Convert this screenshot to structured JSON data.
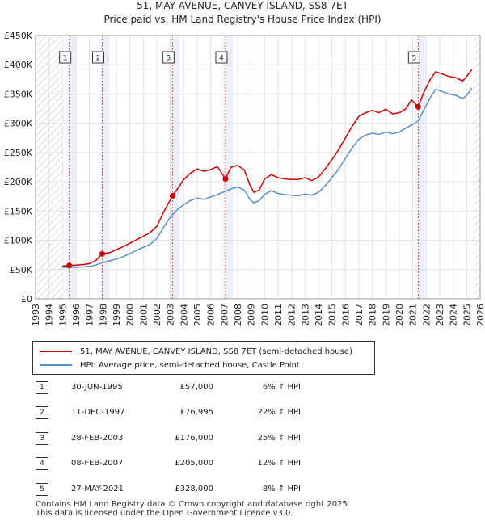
{
  "chart_data": {
    "type": "line",
    "title": "51, MAY AVENUE, CANVEY ISLAND, SS8 7ET",
    "subtitle": "Price paid vs. HM Land Registry's House Price Index (HPI)",
    "xlim": [
      1993,
      2026
    ],
    "ylim": [
      0,
      450000
    ],
    "x_ticks": [
      "1993",
      "1994",
      "1995",
      "1996",
      "1997",
      "1998",
      "1999",
      "2000",
      "2001",
      "2002",
      "2003",
      "2004",
      "2005",
      "2006",
      "2007",
      "2008",
      "2009",
      "2010",
      "2011",
      "2012",
      "2013",
      "2014",
      "2015",
      "2016",
      "2017",
      "2018",
      "2019",
      "2020",
      "2021",
      "2022",
      "2023",
      "2024",
      "2025",
      "2026"
    ],
    "y_ticks": [
      {
        "value": 0,
        "label": "£0"
      },
      {
        "value": 50000,
        "label": "£50K"
      },
      {
        "value": 100000,
        "label": "£100K"
      },
      {
        "value": 150000,
        "label": "£150K"
      },
      {
        "value": 200000,
        "label": "£200K"
      },
      {
        "value": 250000,
        "label": "£250K"
      },
      {
        "value": 300000,
        "label": "£300K"
      },
      {
        "value": 350000,
        "label": "£350K"
      },
      {
        "value": 400000,
        "label": "£400K"
      },
      {
        "value": 450000,
        "label": "£450K"
      }
    ],
    "hatched_ranges": [
      [
        1993,
        1995.0
      ],
      [
        2025.5,
        2026
      ]
    ],
    "series": [
      {
        "name": "51, MAY AVENUE, CANVEY ISLAND, SS8 7ET (semi-detached house)",
        "color": "#cc0000",
        "points": [
          [
            1995.0,
            56000
          ],
          [
            1995.5,
            57000
          ],
          [
            1996.0,
            57500
          ],
          [
            1996.5,
            58500
          ],
          [
            1997.0,
            60000
          ],
          [
            1997.5,
            66000
          ],
          [
            1997.95,
            76995
          ],
          [
            1998.5,
            79000
          ],
          [
            1999.0,
            84000
          ],
          [
            1999.5,
            89000
          ],
          [
            2000.0,
            95000
          ],
          [
            2000.5,
            101000
          ],
          [
            2001.0,
            107000
          ],
          [
            2001.5,
            113000
          ],
          [
            2002.0,
            124000
          ],
          [
            2002.5,
            148000
          ],
          [
            2003.16,
            176000
          ],
          [
            2003.6,
            190000
          ],
          [
            2004.0,
            204000
          ],
          [
            2004.5,
            215000
          ],
          [
            2005.0,
            222000
          ],
          [
            2005.5,
            218000
          ],
          [
            2006.0,
            221000
          ],
          [
            2006.5,
            226000
          ],
          [
            2007.1,
            205000
          ],
          [
            2007.5,
            225000
          ],
          [
            2008.0,
            228000
          ],
          [
            2008.5,
            220000
          ],
          [
            2008.9,
            195000
          ],
          [
            2009.2,
            182000
          ],
          [
            2009.6,
            186000
          ],
          [
            2010.0,
            205000
          ],
          [
            2010.5,
            212000
          ],
          [
            2011.0,
            207000
          ],
          [
            2011.5,
            205000
          ],
          [
            2012.0,
            204000
          ],
          [
            2012.5,
            204000
          ],
          [
            2013.0,
            207000
          ],
          [
            2013.5,
            202000
          ],
          [
            2014.0,
            208000
          ],
          [
            2014.5,
            222000
          ],
          [
            2015.0,
            238000
          ],
          [
            2015.5,
            255000
          ],
          [
            2016.0,
            275000
          ],
          [
            2016.5,
            295000
          ],
          [
            2017.0,
            312000
          ],
          [
            2017.5,
            318000
          ],
          [
            2018.0,
            322000
          ],
          [
            2018.5,
            318000
          ],
          [
            2019.0,
            324000
          ],
          [
            2019.5,
            316000
          ],
          [
            2020.0,
            318000
          ],
          [
            2020.5,
            325000
          ],
          [
            2020.9,
            340000
          ],
          [
            2021.4,
            328000
          ],
          [
            2021.8,
            352000
          ],
          [
            2022.3,
            375000
          ],
          [
            2022.7,
            388000
          ],
          [
            2023.2,
            384000
          ],
          [
            2023.7,
            380000
          ],
          [
            2024.2,
            378000
          ],
          [
            2024.7,
            372000
          ],
          [
            2025.0,
            380000
          ],
          [
            2025.4,
            392000
          ]
        ]
      },
      {
        "name": "HPI: Average price, semi-detached house, Castle Point",
        "color": "#5b8fc7",
        "points": [
          [
            1995.0,
            54000
          ],
          [
            1995.5,
            53500
          ],
          [
            1996.0,
            54000
          ],
          [
            1996.5,
            54500
          ],
          [
            1997.0,
            55500
          ],
          [
            1997.5,
            58000
          ],
          [
            1998.0,
            62000
          ],
          [
            1998.5,
            65000
          ],
          [
            1999.0,
            68000
          ],
          [
            1999.5,
            72000
          ],
          [
            2000.0,
            77000
          ],
          [
            2000.5,
            83000
          ],
          [
            2001.0,
            88000
          ],
          [
            2001.5,
            93000
          ],
          [
            2002.0,
            103000
          ],
          [
            2002.5,
            122000
          ],
          [
            2003.0,
            140000
          ],
          [
            2003.5,
            152000
          ],
          [
            2004.0,
            161000
          ],
          [
            2004.5,
            168000
          ],
          [
            2005.0,
            172000
          ],
          [
            2005.5,
            170000
          ],
          [
            2006.0,
            174000
          ],
          [
            2006.5,
            178000
          ],
          [
            2007.0,
            183000
          ],
          [
            2007.5,
            188000
          ],
          [
            2008.0,
            191000
          ],
          [
            2008.5,
            186000
          ],
          [
            2008.9,
            170000
          ],
          [
            2009.2,
            164000
          ],
          [
            2009.6,
            168000
          ],
          [
            2010.0,
            178000
          ],
          [
            2010.5,
            185000
          ],
          [
            2011.0,
            180000
          ],
          [
            2011.5,
            178000
          ],
          [
            2012.0,
            177000
          ],
          [
            2012.5,
            176000
          ],
          [
            2013.0,
            179000
          ],
          [
            2013.5,
            177000
          ],
          [
            2014.0,
            182000
          ],
          [
            2014.5,
            193000
          ],
          [
            2015.0,
            207000
          ],
          [
            2015.5,
            222000
          ],
          [
            2016.0,
            240000
          ],
          [
            2016.5,
            258000
          ],
          [
            2017.0,
            273000
          ],
          [
            2017.5,
            280000
          ],
          [
            2018.0,
            283000
          ],
          [
            2018.5,
            281000
          ],
          [
            2019.0,
            285000
          ],
          [
            2019.5,
            282000
          ],
          [
            2020.0,
            285000
          ],
          [
            2020.5,
            292000
          ],
          [
            2021.0,
            298000
          ],
          [
            2021.4,
            304000
          ],
          [
            2021.8,
            322000
          ],
          [
            2022.3,
            344000
          ],
          [
            2022.7,
            358000
          ],
          [
            2023.2,
            354000
          ],
          [
            2023.7,
            350000
          ],
          [
            2024.2,
            348000
          ],
          [
            2024.7,
            342000
          ],
          [
            2025.0,
            348000
          ],
          [
            2025.4,
            360000
          ]
        ]
      }
    ],
    "sales": [
      {
        "id": "1",
        "x": 1995.5,
        "value": 57000
      },
      {
        "id": "2",
        "x": 1997.95,
        "value": 76995
      },
      {
        "id": "3",
        "x": 2003.16,
        "value": 176000
      },
      {
        "id": "4",
        "x": 2007.1,
        "value": 205000
      },
      {
        "id": "5",
        "x": 2021.4,
        "value": 328000
      }
    ]
  },
  "legend": {
    "line1": "51, MAY AVENUE, CANVEY ISLAND, SS8 7ET (semi-detached house)",
    "line2": "HPI: Average price, semi-detached house, Castle Point",
    "color1": "#cc0000",
    "color2": "#5b8fc7"
  },
  "purchases": [
    {
      "id": "1",
      "date": "30-JUN-1995",
      "price": "£57,000",
      "hpi": "6% ↑ HPI"
    },
    {
      "id": "2",
      "date": "11-DEC-1997",
      "price": "£76,995",
      "hpi": "22% ↑ HPI"
    },
    {
      "id": "3",
      "date": "28-FEB-2003",
      "price": "£176,000",
      "hpi": "25% ↑ HPI"
    },
    {
      "id": "4",
      "date": "08-FEB-2007",
      "price": "£205,000",
      "hpi": "12% ↑ HPI"
    },
    {
      "id": "5",
      "date": "27-MAY-2021",
      "price": "£328,000",
      "hpi": "8% ↑ HPI"
    }
  ],
  "footer": {
    "line1": "Contains HM Land Registry data © Crown copyright and database right 2025.",
    "line2": "This data is licensed under the Open Government Licence v3.0."
  }
}
